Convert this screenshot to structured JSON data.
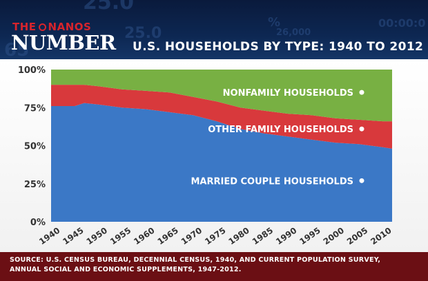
{
  "header": {
    "brand_top_left": "THE",
    "brand_top_right": "NANOS",
    "brand_main": "NUMBER",
    "background_numbers": [
      "25.0",
      "25.0",
      "%",
      "26,000",
      "00:00:0",
      "65"
    ]
  },
  "chart_data": {
    "type": "area",
    "stacked": true,
    "title": "U.S. HOUSEHOLDS BY TYPE: 1940 TO 2012",
    "xlabel": "",
    "ylabel": "",
    "x": [
      1940,
      1945,
      1947,
      1950,
      1955,
      1960,
      1965,
      1970,
      1975,
      1980,
      1985,
      1990,
      1995,
      2000,
      2005,
      2010,
      2012
    ],
    "xticks": [
      "1940",
      "1945",
      "1950",
      "1955",
      "1960",
      "1965",
      "1970",
      "1975",
      "1980",
      "1985",
      "1990",
      "1995",
      "2000",
      "2005",
      "2010"
    ],
    "yticks": [
      "0%",
      "25%",
      "50%",
      "75%",
      "100%"
    ],
    "ylim": [
      0,
      100
    ],
    "grid": false,
    "series": [
      {
        "name": "MARRIED COUPLE HOUSEHOLDS",
        "color": "#3b78c6",
        "values": [
          76,
          76,
          78,
          77,
          75,
          74,
          72,
          70,
          66,
          61,
          58,
          56,
          54,
          52,
          51,
          49,
          48
        ]
      },
      {
        "name": "OTHER FAMILY HOUSEHOLDS",
        "color": "#d8393c",
        "values": [
          14,
          14,
          12,
          12,
          12,
          12,
          13,
          12,
          13,
          14,
          15,
          15,
          16,
          16,
          16,
          17,
          18
        ]
      },
      {
        "name": "NONFAMILY HOUSEHOLDS",
        "color": "#78b043",
        "values": [
          10,
          10,
          10,
          11,
          13,
          14,
          15,
          18,
          21,
          25,
          27,
          29,
          30,
          32,
          33,
          34,
          34
        ]
      }
    ]
  },
  "footer": {
    "source_line1": "SOURCE: U.S. CENSUS BUREAU, DECENNIAL CENSUS, 1940, AND CURRENT POPULATION SURVEY,",
    "source_line2": "ANNUAL SOCIAL AND ECONOMIC SUPPLEMENTS, 1947-2012."
  }
}
